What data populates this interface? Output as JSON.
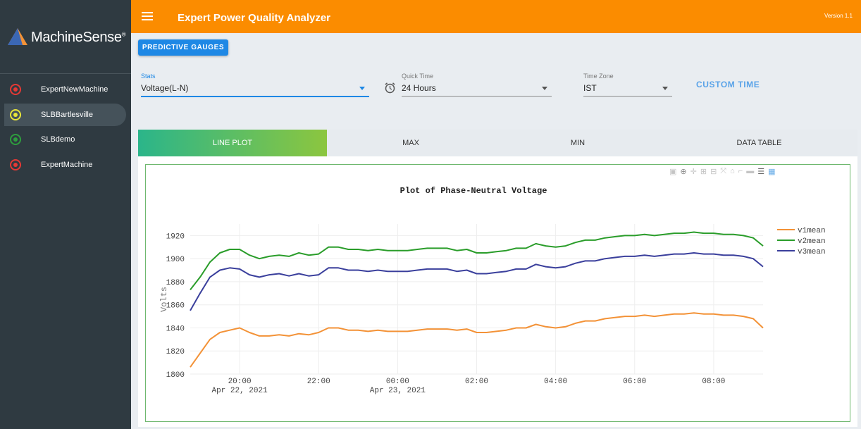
{
  "app": {
    "title": "Expert Power Quality Analyzer",
    "version": "Version 1.1",
    "logo_text": "MachineSense",
    "logo_mark": "®"
  },
  "sidebar": {
    "items": [
      {
        "label": "ExpertNewMachine",
        "status_color": "#e53935",
        "active": false
      },
      {
        "label": "SLBBartlesville",
        "status_color": "#e8e53a",
        "active": true
      },
      {
        "label": "SLBdemo",
        "status_color": "#2e9e3e",
        "active": false
      },
      {
        "label": "ExpertMachine",
        "status_color": "#e53935",
        "active": false
      }
    ]
  },
  "toolbar": {
    "predictive_label": "PREDICTIVE GAUGES"
  },
  "filters": {
    "stats_label": "Stats",
    "stats_value": "Voltage(L-N)",
    "quick_time_label": "Quick Time",
    "quick_time_value": "24 Hours",
    "timezone_label": "Time Zone",
    "timezone_value": "IST",
    "custom_time_label": "CUSTOM TIME"
  },
  "tabs": [
    {
      "label": "LINE PLOT",
      "active": true
    },
    {
      "label": "MAX",
      "active": false
    },
    {
      "label": "MIN",
      "active": false
    },
    {
      "label": "DATA TABLE",
      "active": false
    }
  ],
  "modebar_icons": [
    "camera-icon",
    "zoom-icon",
    "pan-icon",
    "zoom-in-icon",
    "zoom-out-icon",
    "autoscale-icon",
    "home-icon",
    "spike-icon",
    "hover-closest-icon",
    "hover-compare-icon",
    "plotly-logo-icon"
  ],
  "colors": {
    "accent": "#fb8c00",
    "sidebar": "#2f3a41",
    "button": "#1e88e5",
    "v1": "#f39237",
    "v2": "#2a9d2a",
    "v3": "#3a3f9c"
  },
  "chart_data": {
    "type": "line",
    "title": "Plot of Phase-Neutral Voltage",
    "xlabel": "",
    "ylabel": "Volts",
    "x_unit": "hours since Apr 22, 2021 00:00",
    "xlim": [
      18.75,
      33.25
    ],
    "ylim": [
      1800,
      1930
    ],
    "yticks": [
      1800,
      1820,
      1840,
      1860,
      1880,
      1900,
      1920
    ],
    "xticks": [
      {
        "x": 20,
        "label": "20:00",
        "sub": "Apr 22, 2021"
      },
      {
        "x": 22,
        "label": "22:00",
        "sub": ""
      },
      {
        "x": 24,
        "label": "00:00",
        "sub": "Apr 23, 2021"
      },
      {
        "x": 26,
        "label": "02:00",
        "sub": ""
      },
      {
        "x": 28,
        "label": "04:00",
        "sub": ""
      },
      {
        "x": 30,
        "label": "06:00",
        "sub": ""
      },
      {
        "x": 32,
        "label": "08:00",
        "sub": ""
      }
    ],
    "grid": true,
    "legend_position": "top-right",
    "x": [
      18.75,
      19.0,
      19.25,
      19.5,
      19.75,
      20.0,
      20.25,
      20.5,
      20.75,
      21.0,
      21.25,
      21.5,
      21.75,
      22.0,
      22.25,
      22.5,
      22.75,
      23.0,
      23.25,
      23.5,
      23.75,
      24.0,
      24.25,
      24.5,
      24.75,
      25.0,
      25.25,
      25.5,
      25.75,
      26.0,
      26.25,
      26.5,
      26.75,
      27.0,
      27.25,
      27.5,
      27.75,
      28.0,
      28.25,
      28.5,
      28.75,
      29.0,
      29.25,
      29.5,
      29.75,
      30.0,
      30.25,
      30.5,
      30.75,
      31.0,
      31.25,
      31.5,
      31.75,
      32.0,
      32.25,
      32.5,
      32.75,
      33.0,
      33.25
    ],
    "series": [
      {
        "name": "v1mean",
        "color": "#f39237",
        "values": [
          1806,
          1818,
          1830,
          1836,
          1838,
          1840,
          1836,
          1833,
          1833,
          1834,
          1833,
          1835,
          1834,
          1836,
          1840,
          1840,
          1838,
          1838,
          1837,
          1838,
          1837,
          1837,
          1837,
          1838,
          1839,
          1839,
          1839,
          1838,
          1839,
          1836,
          1836,
          1837,
          1838,
          1840,
          1840,
          1843,
          1841,
          1840,
          1841,
          1844,
          1846,
          1846,
          1848,
          1849,
          1850,
          1850,
          1851,
          1850,
          1851,
          1852,
          1852,
          1853,
          1852,
          1852,
          1851,
          1851,
          1850,
          1848,
          1840
        ]
      },
      {
        "name": "v2mean",
        "color": "#2a9d2a",
        "values": [
          1873,
          1884,
          1897,
          1905,
          1908,
          1908,
          1903,
          1900,
          1902,
          1903,
          1902,
          1905,
          1903,
          1904,
          1910,
          1910,
          1908,
          1908,
          1907,
          1908,
          1907,
          1907,
          1907,
          1908,
          1909,
          1909,
          1909,
          1907,
          1908,
          1905,
          1905,
          1906,
          1907,
          1909,
          1909,
          1913,
          1911,
          1910,
          1911,
          1914,
          1916,
          1916,
          1918,
          1919,
          1920,
          1920,
          1921,
          1920,
          1921,
          1922,
          1922,
          1923,
          1922,
          1922,
          1921,
          1921,
          1920,
          1918,
          1911
        ]
      },
      {
        "name": "v3mean",
        "color": "#3a3f9c",
        "values": [
          1855,
          1870,
          1884,
          1890,
          1892,
          1891,
          1886,
          1884,
          1886,
          1887,
          1885,
          1887,
          1885,
          1886,
          1892,
          1892,
          1890,
          1890,
          1889,
          1890,
          1889,
          1889,
          1889,
          1890,
          1891,
          1891,
          1891,
          1889,
          1890,
          1887,
          1887,
          1888,
          1889,
          1891,
          1891,
          1895,
          1893,
          1892,
          1893,
          1896,
          1898,
          1898,
          1900,
          1901,
          1902,
          1902,
          1903,
          1902,
          1903,
          1904,
          1904,
          1905,
          1904,
          1904,
          1903,
          1903,
          1902,
          1900,
          1893
        ]
      }
    ]
  }
}
